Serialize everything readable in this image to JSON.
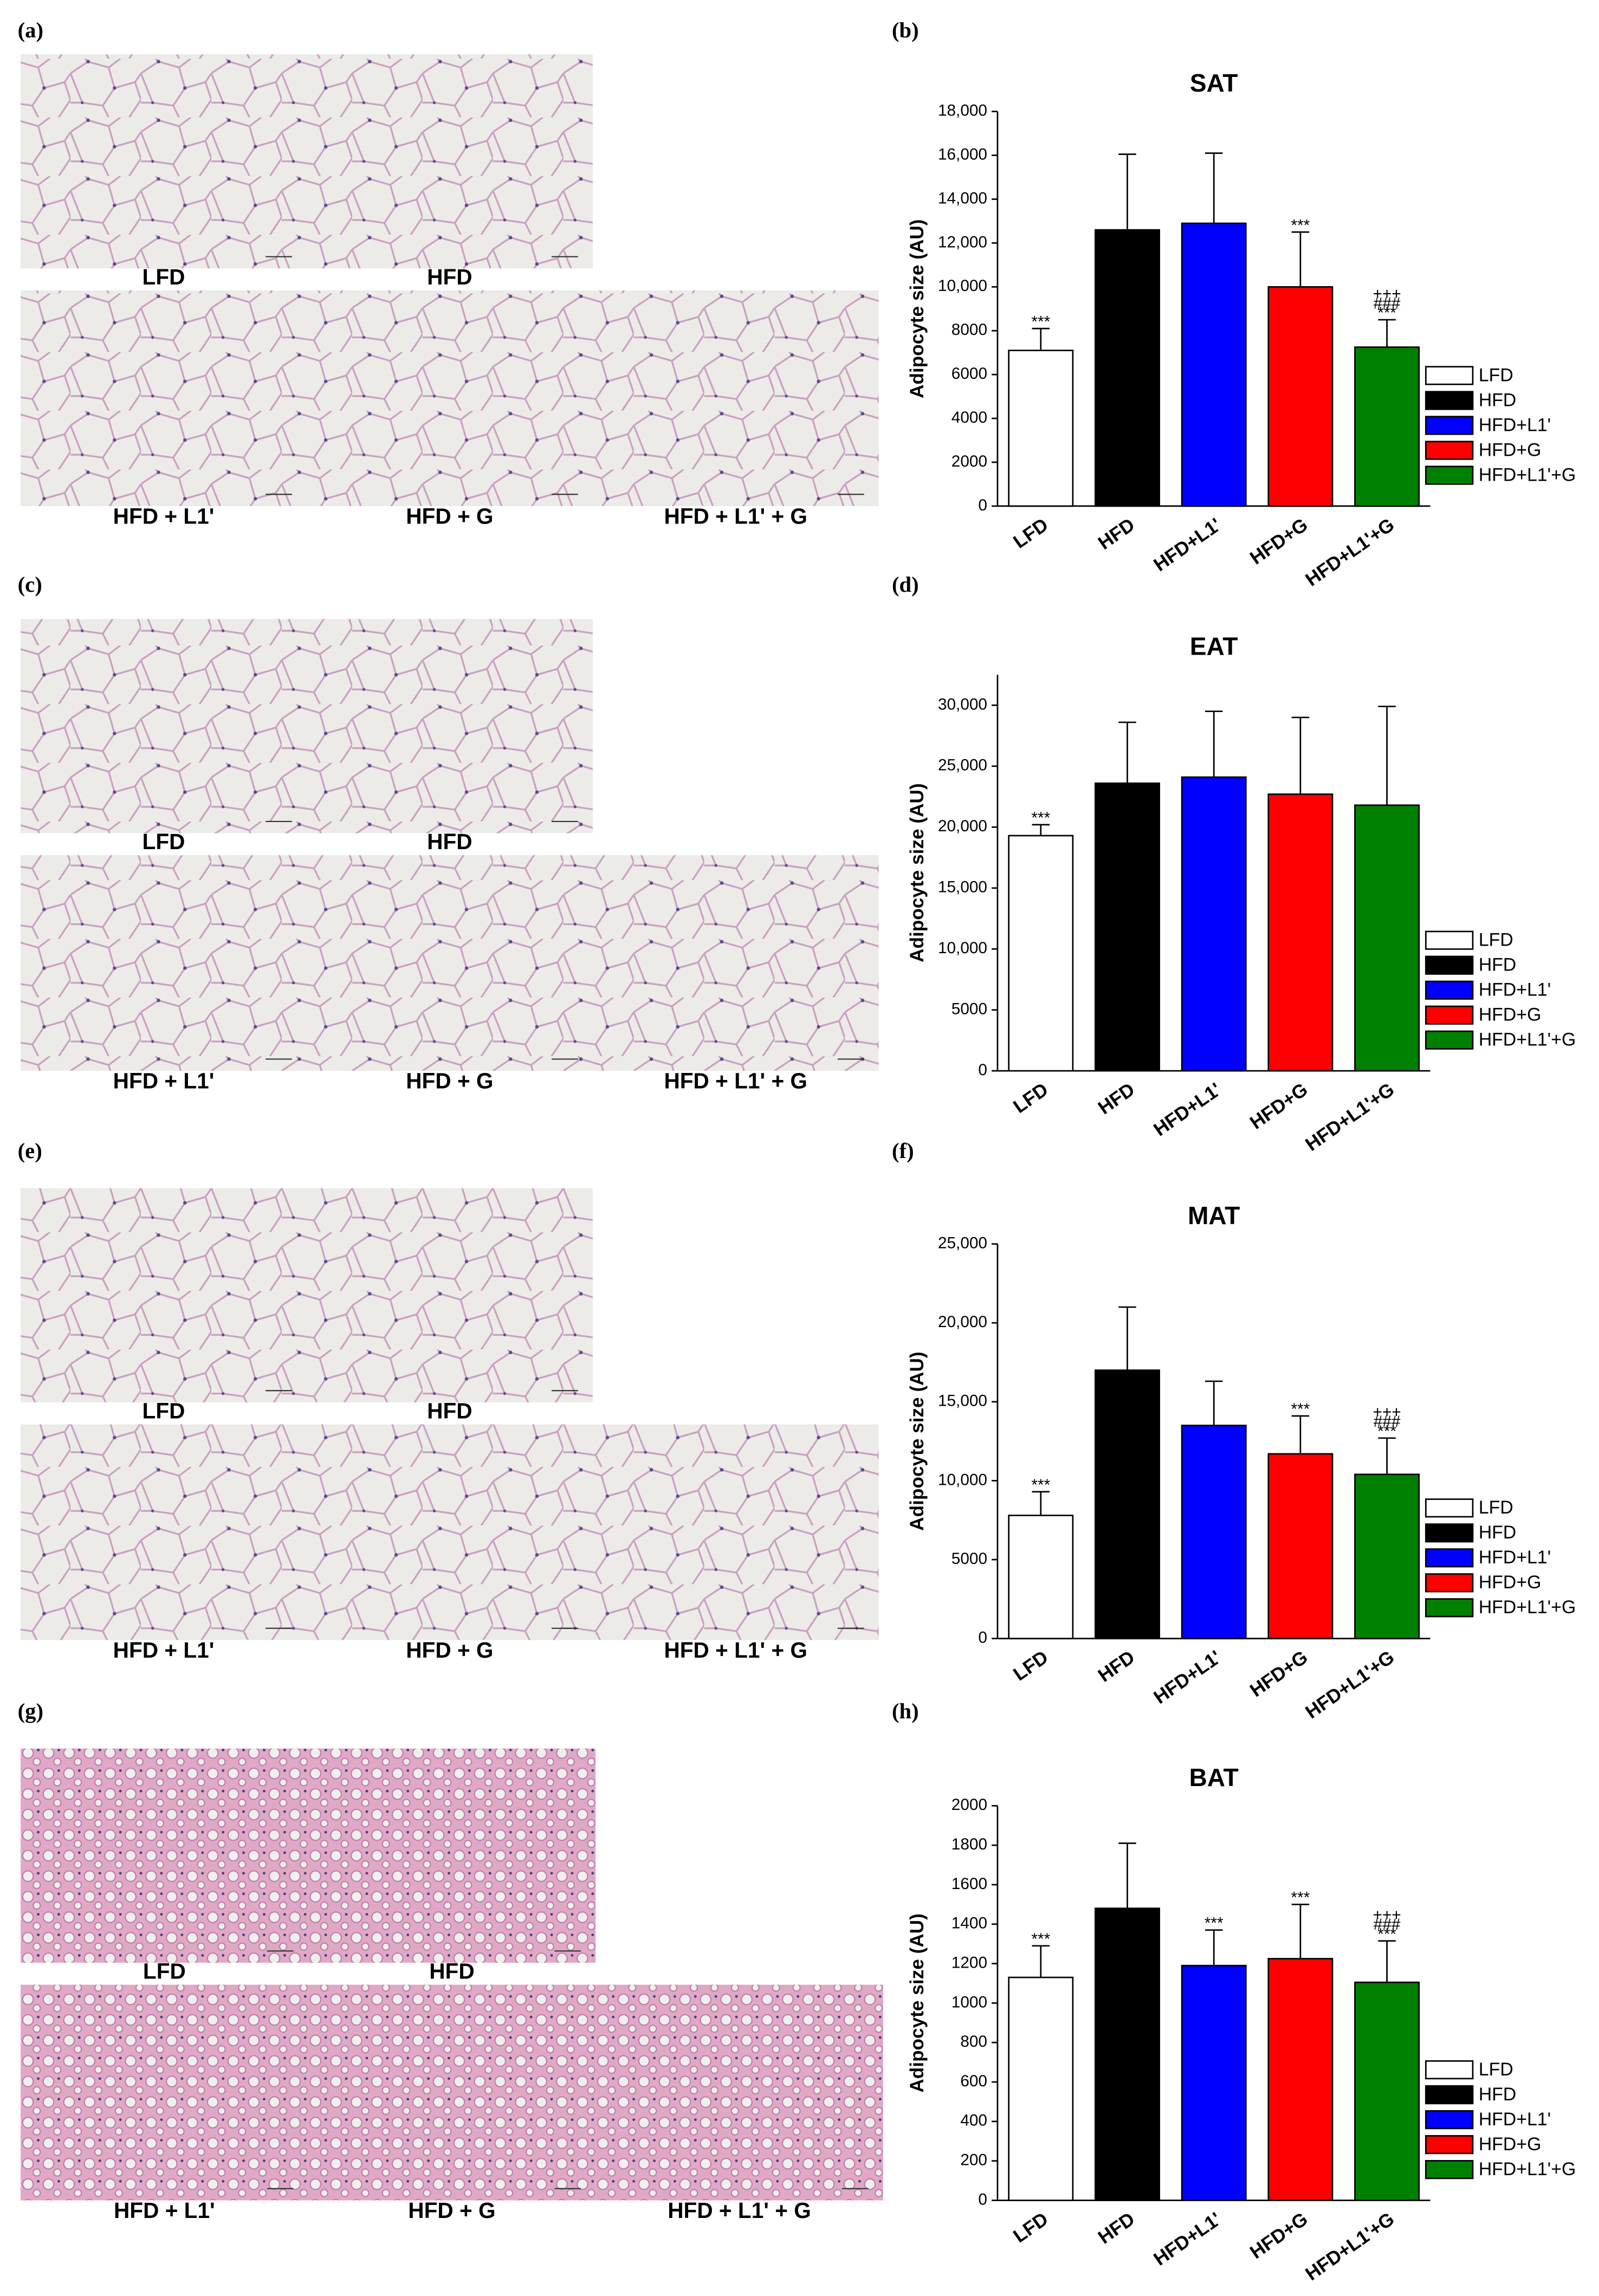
{
  "image_panels": [
    {
      "label": "(a)",
      "captions": [
        "LFD",
        "HFD",
        "HFD + L1'",
        "HFD + G",
        "HFD + L1' + G"
      ]
    },
    {
      "label": "(c)",
      "captions": [
        "LFD",
        "HFD",
        "HFD + L1'",
        "HFD + G",
        "HFD + L1' + G"
      ]
    },
    {
      "label": "(e)",
      "captions": [
        "LFD",
        "HFD",
        "HFD + L1'",
        "HFD + G",
        "HFD + L1' + G"
      ]
    },
    {
      "label": "(g)",
      "captions": [
        "LFD",
        "HFD",
        "HFD + L1'",
        "HFD + G",
        "HFD + L1' + G"
      ]
    }
  ],
  "chart_data": [
    {
      "type": "bar",
      "panel_label": "(b)",
      "title": "SAT",
      "ylabel": "Adipocyte size (AU)",
      "categories": [
        "LFD",
        "HFD",
        "HFD+L1'",
        "HFD+G",
        "HFD+L1'+G"
      ],
      "values": [
        7100,
        12600,
        12900,
        10000,
        7250
      ],
      "errors": [
        1000,
        3450,
        3200,
        2500,
        1250
      ],
      "colors": [
        "#ffffff",
        "#000000",
        "#0000ff",
        "#ff0000",
        "#008000"
      ],
      "annotations": [
        [
          "***"
        ],
        null,
        null,
        [
          "***"
        ],
        [
          "+++",
          "###",
          "***"
        ]
      ],
      "ylim": [
        0,
        18000
      ],
      "yticks": [
        0,
        2000,
        4000,
        6000,
        8000,
        {
          "value": 10000,
          "label": "10,000"
        },
        {
          "value": 12000,
          "label": "12,000"
        },
        {
          "value": 14000,
          "label": "14,000"
        },
        {
          "value": 16000,
          "label": "16,000"
        },
        {
          "value": 18000,
          "label": "18,000"
        }
      ],
      "grid": false,
      "legend": "right"
    },
    {
      "type": "bar",
      "panel_label": "(d)",
      "title": "EAT",
      "ylabel": "Adipocyte size (AU)",
      "categories": [
        "LFD",
        "HFD",
        "HFD+L1'",
        "HFD+G",
        "HFD+L1'+G"
      ],
      "values": [
        19300,
        23600,
        24100,
        22700,
        21800
      ],
      "errors": [
        900,
        5000,
        5400,
        6300,
        8100
      ],
      "colors": [
        "#ffffff",
        "#000000",
        "#0000ff",
        "#ff0000",
        "#008000"
      ],
      "annotations": [
        [
          "***"
        ],
        null,
        null,
        null,
        null
      ],
      "ylim": [
        0,
        32500
      ],
      "yticks": [
        0,
        5000,
        {
          "value": 10000,
          "label": "10,000"
        },
        {
          "value": 15000,
          "label": "15,000"
        },
        {
          "value": 20000,
          "label": "20,000"
        },
        {
          "value": 25000,
          "label": "25,000"
        },
        {
          "value": 30000,
          "label": "30,000"
        }
      ],
      "grid": false,
      "legend": "right"
    },
    {
      "type": "bar",
      "panel_label": "(f)",
      "title": "MAT",
      "ylabel": "Adipocyte size (AU)",
      "categories": [
        "LFD",
        "HFD",
        "HFD+L1'",
        "HFD+G",
        "HFD+L1'+G"
      ],
      "values": [
        7800,
        17000,
        13500,
        11700,
        10400
      ],
      "errors": [
        1500,
        4000,
        2800,
        2400,
        2300
      ],
      "colors": [
        "#ffffff",
        "#000000",
        "#0000ff",
        "#ff0000",
        "#008000"
      ],
      "annotations": [
        [
          "***"
        ],
        null,
        null,
        [
          "***"
        ],
        [
          "+++",
          "###",
          "***"
        ]
      ],
      "ylim": [
        0,
        25000
      ],
      "yticks": [
        0,
        5000,
        {
          "value": 10000,
          "label": "10,000"
        },
        {
          "value": 15000,
          "label": "15,000"
        },
        {
          "value": 20000,
          "label": "20,000"
        },
        {
          "value": 25000,
          "label": "25,000"
        }
      ],
      "grid": false,
      "legend": "right"
    },
    {
      "type": "bar",
      "panel_label": "(h)",
      "title": "BAT",
      "ylabel": "Adipocyte size (AU)",
      "categories": [
        "LFD",
        "HFD",
        "HFD+L1'",
        "HFD+G",
        "HFD+L1'+G"
      ],
      "values": [
        1130,
        1480,
        1190,
        1225,
        1105
      ],
      "errors": [
        160,
        330,
        180,
        275,
        210
      ],
      "colors": [
        "#ffffff",
        "#000000",
        "#0000ff",
        "#ff0000",
        "#008000"
      ],
      "annotations": [
        [
          "***"
        ],
        null,
        [
          "***"
        ],
        [
          "***"
        ],
        [
          "+++",
          "###",
          "***"
        ]
      ],
      "ylim": [
        0,
        2000
      ],
      "yticks": [
        0,
        200,
        400,
        600,
        800,
        1000,
        1200,
        1400,
        1600,
        1800,
        2000
      ],
      "grid": false,
      "legend": "right"
    }
  ]
}
